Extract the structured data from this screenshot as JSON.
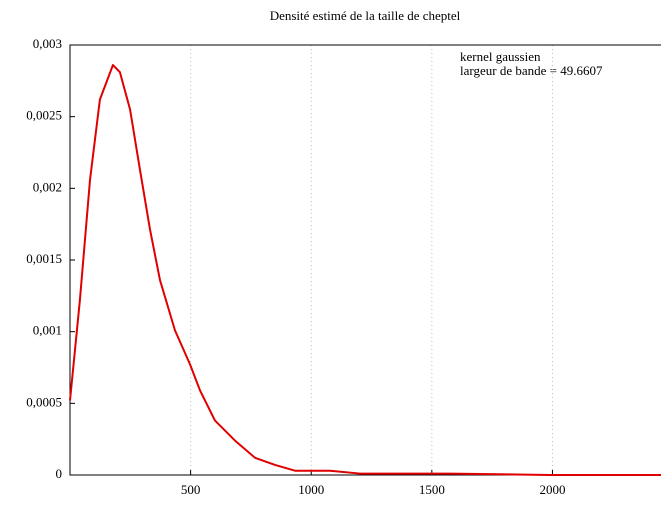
{
  "chart_data": {
    "type": "line",
    "title": "Densité estimé de la taille de cheptel",
    "annotations": [
      "kernel gaussien",
      "largeur de bande = 49.6607"
    ],
    "x": [
      0,
      41,
      83,
      124,
      178,
      207,
      249,
      290,
      332,
      373,
      435,
      498,
      539,
      601,
      684,
      767,
      850,
      933,
      1078,
      1202,
      1575,
      1990,
      2450
    ],
    "series": [
      {
        "color": "#e00000",
        "values": [
          0.00052,
          0.00122,
          0.00206,
          0.00262,
          0.00286,
          0.00281,
          0.00255,
          0.00213,
          0.00171,
          0.00136,
          0.00101,
          0.00077,
          0.00059,
          0.00038,
          0.00024,
          0.00012,
          7e-05,
          3e-05,
          3e-05,
          1e-05,
          1e-05,
          0,
          0
        ]
      }
    ],
    "xlim": [
      0,
      2450
    ],
    "xticks": [
      500,
      1000,
      1500,
      2000
    ],
    "ylim": [
      0,
      0.003
    ],
    "yticks": [
      0,
      {
        "value": 0.0005,
        "label": "0,0005"
      },
      {
        "value": 0.001,
        "label": "0,001"
      },
      {
        "value": 0.0015,
        "label": "0,0015"
      },
      {
        "value": 0.002,
        "label": "0,002"
      },
      {
        "value": 0.0025,
        "label": "0,0025"
      },
      {
        "value": 0.003,
        "label": "0,003"
      }
    ],
    "grid": "x"
  }
}
